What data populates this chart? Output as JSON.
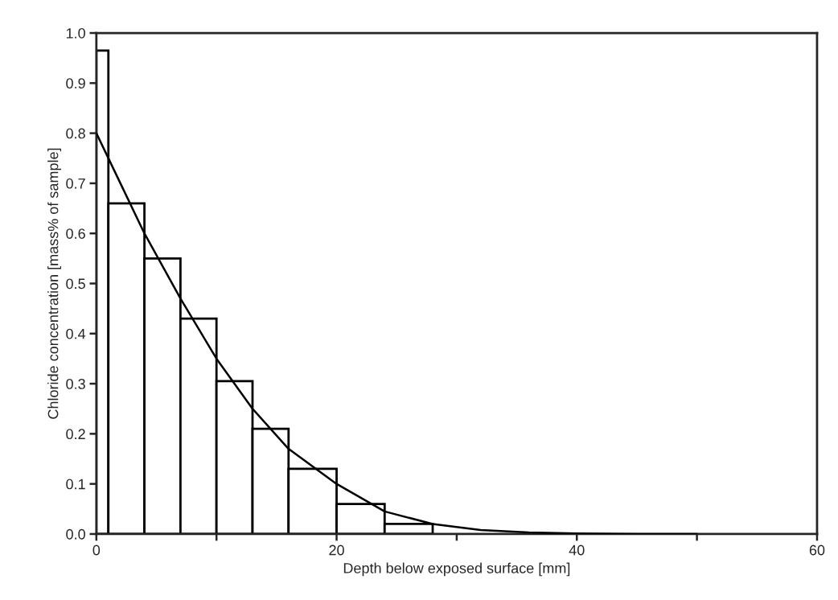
{
  "chart_data": {
    "type": "histogram",
    "xlabel": "Depth below exposed surface [mm]",
    "ylabel": "Chloride concentration [mass% of sample]",
    "series": [
      {
        "color": "#000000",
        "bins": [
          0,
          1,
          4,
          7,
          10,
          13,
          16,
          20,
          24,
          28
        ],
        "values": [
          0.965,
          0.66,
          0.55,
          0.43,
          0.305,
          0.21,
          0.13,
          0.06,
          0.02
        ]
      },
      {
        "type": "line",
        "color": "#000000",
        "x": [
          0,
          2,
          4,
          7,
          10,
          13,
          16,
          20,
          24,
          28,
          32,
          36,
          40,
          45,
          50
        ],
        "values": [
          0.8,
          0.7,
          0.6,
          0.47,
          0.35,
          0.25,
          0.17,
          0.1,
          0.045,
          0.02,
          0.008,
          0.003,
          0.001,
          0.0,
          0.0
        ]
      }
    ],
    "xlim": [
      0,
      60
    ],
    "xticks": [
      0,
      {
        "value": 10,
        "label": null
      },
      20,
      {
        "value": 30,
        "label": null
      },
      40,
      {
        "value": 50,
        "label": null
      },
      60
    ],
    "ylim": [
      0,
      1.0
    ],
    "yticks": [
      {
        "value": 0,
        "label": "0.0"
      },
      0.1,
      0.2,
      0.3,
      0.4,
      0.5,
      0.6,
      0.7,
      0.8,
      0.9,
      {
        "value": 1.0,
        "label": "1.0"
      }
    ],
    "grid": false,
    "legend": false
  }
}
